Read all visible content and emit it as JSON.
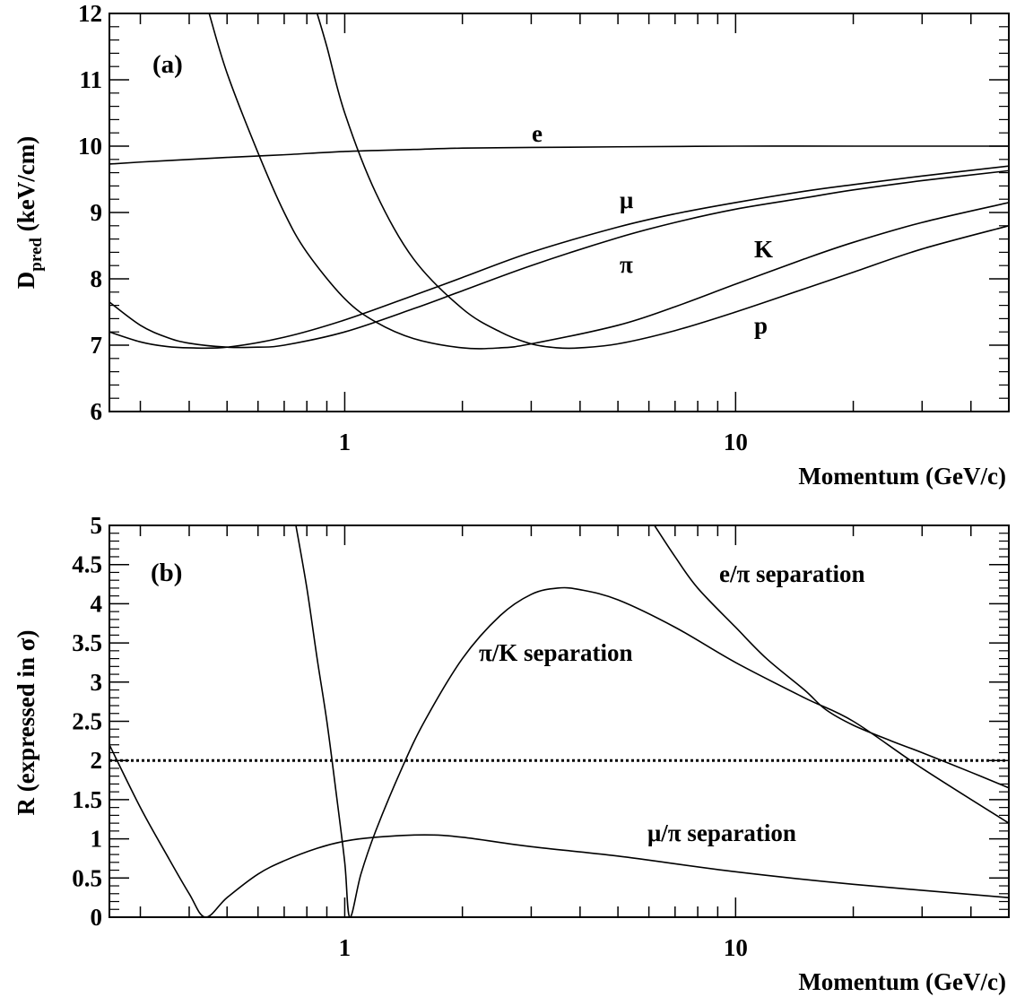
{
  "chart_data": [
    {
      "type": "line",
      "panel_label": "(a)",
      "x_scale": "log",
      "xlim": [
        0.25,
        50
      ],
      "ylim": [
        6,
        12
      ],
      "xlabel": "Momentum (GeV/c)",
      "ylabel_main": "D",
      "ylabel_sub": "pred",
      "ylabel_unit": " (keV/cm)",
      "x_ticks": [
        1,
        10
      ],
      "x_tick_labels": [
        "1",
        "10"
      ],
      "y_ticks": [
        6,
        7,
        8,
        9,
        10,
        11,
        12
      ],
      "y_tick_labels": [
        "6",
        "7",
        "8",
        "9",
        "10",
        "11",
        "12"
      ],
      "color": "#000000",
      "series": [
        {
          "name": "e",
          "x": [
            0.25,
            0.3,
            0.4,
            0.5,
            0.7,
            1,
            1.5,
            2,
            3,
            5,
            10,
            20,
            50
          ],
          "y": [
            9.73,
            9.76,
            9.8,
            9.83,
            9.87,
            9.92,
            9.95,
            9.97,
            9.98,
            9.99,
            10.0,
            10.0,
            10.0
          ]
        },
        {
          "name": "μ",
          "x": [
            0.25,
            0.3,
            0.35,
            0.4,
            0.5,
            0.7,
            1,
            1.5,
            2,
            3,
            5,
            7,
            10,
            15,
            20,
            30,
            50
          ],
          "y": [
            7.2,
            7.05,
            6.98,
            6.96,
            6.97,
            7.12,
            7.38,
            7.75,
            8.02,
            8.4,
            8.78,
            8.98,
            9.15,
            9.32,
            9.42,
            9.55,
            9.7
          ]
        },
        {
          "name": "π",
          "x": [
            0.25,
            0.3,
            0.35,
            0.4,
            0.5,
            0.6,
            0.7,
            1,
            1.5,
            2,
            3,
            5,
            7,
            10,
            15,
            20,
            30,
            50
          ],
          "y": [
            7.65,
            7.3,
            7.12,
            7.03,
            6.97,
            6.97,
            7.0,
            7.2,
            7.55,
            7.82,
            8.2,
            8.62,
            8.85,
            9.05,
            9.22,
            9.34,
            9.48,
            9.63
          ]
        },
        {
          "name": "K",
          "x": [
            0.45,
            0.5,
            0.6,
            0.7,
            0.8,
            1,
            1.2,
            1.5,
            2,
            2.5,
            3,
            5,
            7,
            10,
            15,
            20,
            30,
            50
          ],
          "y": [
            12.0,
            11.1,
            9.9,
            9.0,
            8.4,
            7.7,
            7.35,
            7.1,
            6.96,
            6.96,
            7.02,
            7.3,
            7.58,
            7.92,
            8.3,
            8.55,
            8.85,
            9.15
          ]
        },
        {
          "name": "p",
          "x": [
            0.85,
            0.9,
            1,
            1.2,
            1.5,
            2,
            2.5,
            3,
            3.5,
            4,
            5,
            7,
            10,
            15,
            20,
            30,
            50
          ],
          "y": [
            12.0,
            11.5,
            10.5,
            9.3,
            8.3,
            7.55,
            7.2,
            7.02,
            6.96,
            6.96,
            7.02,
            7.22,
            7.5,
            7.85,
            8.1,
            8.45,
            8.8
          ]
        }
      ],
      "labels": {
        "e": "e",
        "mu": "μ",
        "pi": "π",
        "k": "K",
        "p": "p"
      }
    },
    {
      "type": "line",
      "panel_label": "(b)",
      "x_scale": "log",
      "xlim": [
        0.25,
        50
      ],
      "ylim": [
        0,
        5
      ],
      "xlabel": "Momentum (GeV/c)",
      "ylabel_main": "R (expressed in σ)",
      "x_ticks": [
        1,
        10
      ],
      "x_tick_labels": [
        "1",
        "10"
      ],
      "y_ticks": [
        0,
        0.5,
        1,
        1.5,
        2,
        2.5,
        3,
        3.5,
        4,
        4.5,
        5
      ],
      "y_tick_labels": [
        "0",
        "0.5",
        "1",
        "1.5",
        "2",
        "2.5",
        "3",
        "3.5",
        "4",
        "4.5",
        "5"
      ],
      "threshold": 2,
      "color": "#000000",
      "series": [
        {
          "name": "μ/π separation",
          "x": [
            0.25,
            0.3,
            0.35,
            0.4,
            0.44,
            0.5,
            0.6,
            0.7,
            0.85,
            1,
            1.2,
            1.6,
            2,
            3,
            5,
            10,
            20,
            50
          ],
          "y": [
            2.2,
            1.4,
            0.8,
            0.3,
            0.0,
            0.25,
            0.55,
            0.72,
            0.88,
            0.97,
            1.02,
            1.05,
            1.02,
            0.9,
            0.78,
            0.58,
            0.42,
            0.25
          ]
        },
        {
          "name": "π/K separation",
          "x": [
            0.75,
            0.8,
            0.85,
            0.9,
            0.95,
            1,
            1.03,
            1.1,
            1.2,
            1.4,
            1.6,
            2,
            2.5,
            3,
            3.5,
            4,
            5,
            7,
            10,
            15,
            20,
            30,
            50
          ],
          "y": [
            5.0,
            4.2,
            3.3,
            2.5,
            1.6,
            0.7,
            0.0,
            0.55,
            1.1,
            1.9,
            2.5,
            3.3,
            3.85,
            4.12,
            4.2,
            4.18,
            4.05,
            3.7,
            3.25,
            2.8,
            2.5,
            1.9,
            1.2
          ]
        },
        {
          "name": "e/π separation",
          "x": [
            6.2,
            7,
            8,
            10,
            12,
            15,
            17,
            20,
            25,
            30,
            40,
            50
          ],
          "y": [
            5.0,
            4.6,
            4.2,
            3.7,
            3.3,
            2.9,
            2.65,
            2.45,
            2.25,
            2.1,
            1.85,
            1.65
          ]
        }
      ],
      "labels": {
        "mu_pi": "μ/π separation",
        "pi_k": "π/K separation",
        "e_pi": "e/π separation"
      }
    }
  ]
}
